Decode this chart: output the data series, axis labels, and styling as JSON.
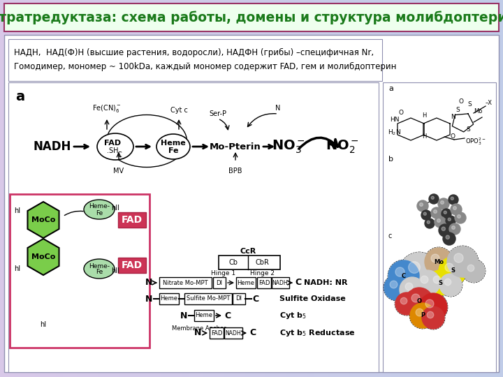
{
  "title": "Нитратредуктаза: схема работы, домены и структура молибдоптерина",
  "title_color": "#1a7a1a",
  "title_bg": "#eeffee",
  "title_border": "#993366",
  "bg_left": "#d8c8e8",
  "bg_right": "#c0cce8",
  "subtitle_line1": "НАДН,  НАД(Ф)Н (высшие растения, водоросли), НАДФН (грибы) –специфичная Nr,",
  "subtitle_line2": "Гомодимер, мономер ~ 100kDa, каждый мономер содержит FAD, гем и молибдоптерин"
}
